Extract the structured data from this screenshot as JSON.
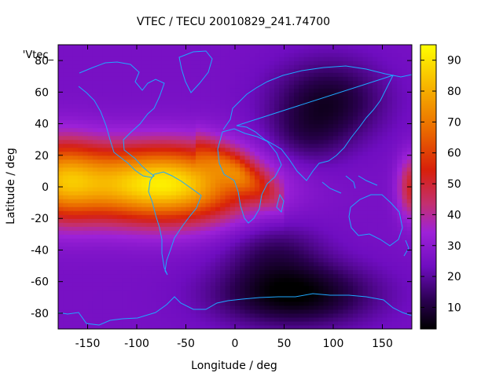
{
  "chart_data": {
    "type": "heatmap",
    "title": "VTEC / TECU 20010829_241.74700",
    "xlabel": "Longitude / deg",
    "ylabel": "Latitude / deg",
    "series_label": "'Vtec_",
    "xlim": [
      -180,
      180
    ],
    "ylim": [
      -90,
      90
    ],
    "x_ticks": [
      -150,
      -100,
      -50,
      0,
      50,
      100,
      150
    ],
    "y_ticks": [
      -80,
      -60,
      -40,
      -20,
      0,
      20,
      40,
      60,
      80
    ],
    "colorbar": {
      "range": [
        3,
        95
      ],
      "ticks": [
        10,
        20,
        30,
        40,
        50,
        60,
        70,
        80,
        90
      ]
    },
    "grid": false,
    "colormap": "black-purple-red-orange-yellow",
    "overlay": "coastlines",
    "grid_resolution": {
      "lon_step_deg": 5,
      "lat_step_deg": 2.5
    },
    "features": {
      "background_level": 24,
      "crest": {
        "center_lon": -75,
        "center_lat": 2,
        "peak": 92,
        "lat_width": 17,
        "lon_width": 68,
        "tail_lon_width": 35,
        "tail_level": 58
      },
      "west_wrap_band": {
        "lat": 5,
        "level": 62
      },
      "east_edge_patch": {
        "lon": 180,
        "lat": 0,
        "level": 50
      },
      "atlantic_tongue": {
        "lon_from": -20,
        "lon_to": 40,
        "lat_from": 18,
        "lat_to": -5,
        "level": 44
      },
      "southern_trough": {
        "lon": 60,
        "lat": -68,
        "level": 3
      },
      "asian_night_low": {
        "lon": 95,
        "lat": 55,
        "level": 8
      }
    }
  }
}
